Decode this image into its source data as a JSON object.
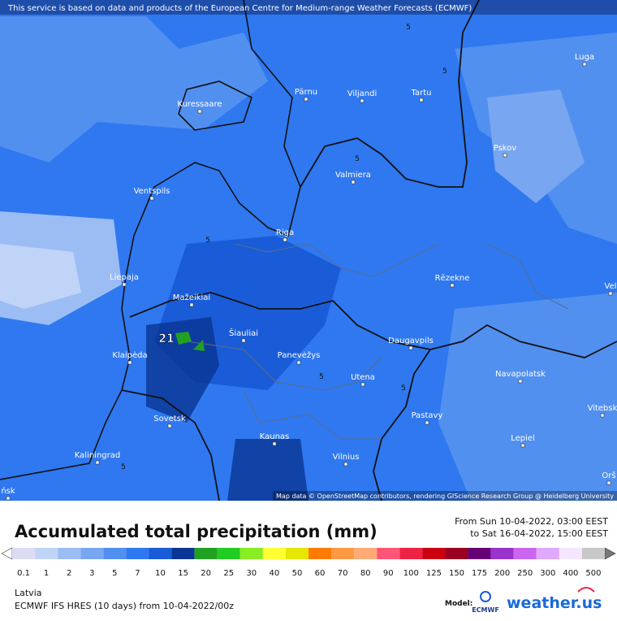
{
  "notice": "This service is based on data and products of the European Centre for Medium-range Weather Forecasts (ECMWF)",
  "cities": [
    "Luga",
    "Kuressaare",
    "Pärnu",
    "Viljandi",
    "Tartu",
    "Pskov",
    "Valmiera",
    "Ventspils",
    "Riga",
    "Liepaja",
    "Rēzekne",
    "Vel",
    "Mažeikiai",
    "Šiauliai",
    "Daugavpils",
    "Klaipėda",
    "Panevėžys",
    "Utena",
    "Navapolatsk",
    "Vitebsk",
    "Sovetsk",
    "Pastavy",
    "Kaunas",
    "Lepiel",
    "Kaliningrad",
    "Vilnius",
    "Orš",
    "ńsk"
  ],
  "contour_labels": [
    "5",
    "5",
    "5",
    "5",
    "5",
    "5",
    "5"
  ],
  "max_label": "21",
  "map_attribution": "Map data © OpenStreetMap contributors, rendering GIScience Research Group @ Heidelberg University",
  "title": "Accumulated total precipitation (mm)",
  "period": [
    "From Sun 10-04-2022, 03:00 EEST",
    "to Sat 16-04-2022, 15:00 EEST"
  ],
  "legend": {
    "labels": [
      "0.1",
      "1",
      "2",
      "3",
      "5",
      "7",
      "10",
      "15",
      "20",
      "25",
      "30",
      "40",
      "50",
      "60",
      "70",
      "80",
      "90",
      "100",
      "125",
      "150",
      "175",
      "200",
      "250",
      "300",
      "400",
      "500"
    ],
    "colors": [
      "#dcdcf4",
      "#c0d4f8",
      "#9cbcf4",
      "#78a6f0",
      "#5290f0",
      "#2f78f0",
      "#1a5cd8",
      "#0a3592",
      "#22a020",
      "#22cc22",
      "#88ee22",
      "#ffff33",
      "#e6e600",
      "#ff7a00",
      "#ff9944",
      "#ffaa77",
      "#ff5577",
      "#ee2244",
      "#cc0011",
      "#990022",
      "#660077",
      "#9933cc",
      "#cc66ee",
      "#e0a8ff",
      "#f4e6ff",
      "#c8c8c8"
    ]
  },
  "region": "Latvia",
  "model_run": "ECMWF IFS HRES (10 days) from 10-04-2022/00z",
  "model_caption": "Model:",
  "ecmwf_logo": "ECMWF",
  "brand": "weather.us"
}
